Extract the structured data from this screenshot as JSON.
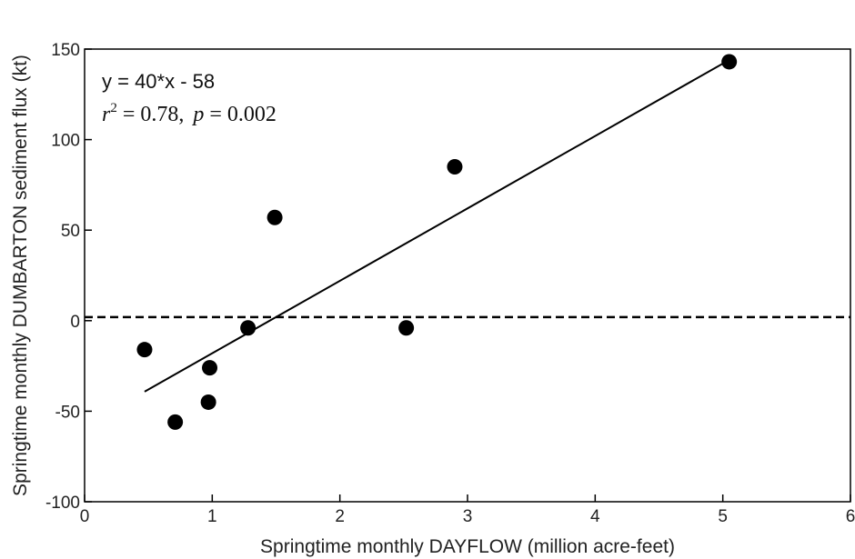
{
  "chart_data": {
    "type": "scatter",
    "title": "",
    "xlabel": "Springtime monthly DAYFLOW (million acre-feet)",
    "ylabel": "Springtime monthly DUMBARTON sediment flux (kt)",
    "xlim": [
      0,
      6
    ],
    "ylim": [
      -100,
      150
    ],
    "xticks": [
      "0",
      "1",
      "2",
      "3",
      "4",
      "5",
      "6"
    ],
    "yticks": [
      "-100",
      "-50",
      "0",
      "50",
      "100",
      "150"
    ],
    "grid": false,
    "series": [
      {
        "points": [
          {
            "x": 0.47,
            "y": -16
          },
          {
            "x": 0.71,
            "y": -56
          },
          {
            "x": 0.97,
            "y": -45
          },
          {
            "x": 0.98,
            "y": -26
          },
          {
            "x": 1.28,
            "y": -4
          },
          {
            "x": 1.49,
            "y": 57
          },
          {
            "x": 2.52,
            "y": -4
          },
          {
            "x": 2.9,
            "y": 85
          },
          {
            "x": 5.05,
            "y": 143
          }
        ]
      }
    ],
    "fit_line": {
      "x_start": 0.47,
      "x_end": 5.05,
      "slope": 40,
      "intercept": -58
    },
    "reference_line": {
      "y": 2,
      "style": "dashed"
    },
    "annotations": {
      "equation": "y = 40*x - 58",
      "r_symbol": "r",
      "r_exponent": "2",
      "r_value": " = 0.78,",
      "p_symbol": "p",
      "p_value": " = 0.002"
    }
  }
}
